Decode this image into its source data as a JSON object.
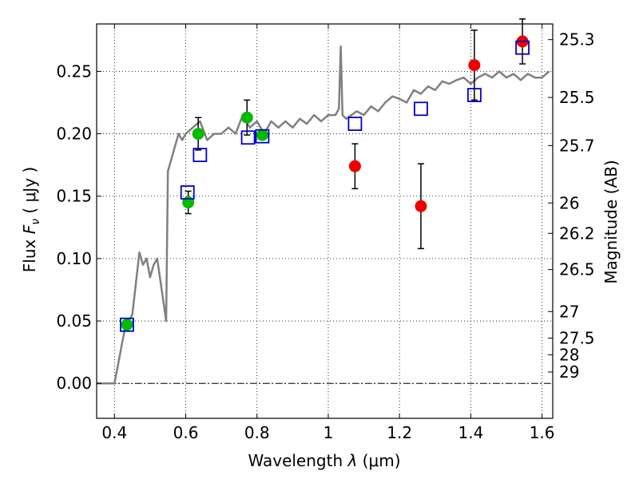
{
  "chart_data": {
    "type": "scatter",
    "xlabel_prefix": "Wavelength  ",
    "xlabel_symbol": "λ",
    "xlabel_unit": " (μm)",
    "ylabel_prefix": "Flux  ",
    "ylabel_symbol": "F",
    "ylabel_sub": "ν",
    "ylabel_unit": " ( μJy )",
    "y2label": "Magnitude (AB)",
    "xlim": [
      0.35,
      1.63
    ],
    "ylim": [
      -0.028,
      0.288
    ],
    "x_ticks": [
      0.4,
      0.6,
      0.8,
      1.0,
      1.2,
      1.4,
      1.6
    ],
    "x_tick_labels": [
      "0.4",
      "0.6",
      "0.8",
      "1",
      "1.2",
      "1.4",
      "1.6"
    ],
    "y_ticks": [
      0.0,
      0.05,
      0.1,
      0.15,
      0.2,
      0.25
    ],
    "y_tick_labels": [
      "0.00",
      "0.05",
      "0.10",
      "0.15",
      "0.20",
      "0.25"
    ],
    "y2_ticks": [
      {
        "mag": 25.3,
        "label": "25.3"
      },
      {
        "mag": 25.5,
        "label": "25.5"
      },
      {
        "mag": 25.7,
        "label": "25.7"
      },
      {
        "mag": 26,
        "label": "26"
      },
      {
        "mag": 26.2,
        "label": "26.2"
      },
      {
        "mag": 26.5,
        "label": "26.5"
      },
      {
        "mag": 27,
        "label": "27"
      },
      {
        "mag": 27.5,
        "label": "27.5"
      },
      {
        "mag": 28,
        "label": "28"
      },
      {
        "mag": 29,
        "label": "29"
      }
    ],
    "grid": true,
    "colors": {
      "model": "#808080",
      "model_points": "#0000cc",
      "green": "#00bb00",
      "red": "#ee0000",
      "errorbar": "#000000",
      "zero_line": "#000000"
    },
    "series": [
      {
        "kind": "line",
        "x": [
          0.35,
          0.4,
          0.41,
          0.42,
          0.43,
          0.44,
          0.45,
          0.46,
          0.47,
          0.48,
          0.49,
          0.5,
          0.51,
          0.52,
          0.53,
          0.54,
          0.545,
          0.55,
          0.56,
          0.57,
          0.58,
          0.59,
          0.6,
          0.62,
          0.64,
          0.66,
          0.68,
          0.7,
          0.72,
          0.74,
          0.76,
          0.78,
          0.8,
          0.82,
          0.84,
          0.86,
          0.88,
          0.9,
          0.92,
          0.94,
          0.96,
          0.98,
          1.0,
          1.02,
          1.03,
          1.035,
          1.04,
          1.05,
          1.08,
          1.1,
          1.12,
          1.14,
          1.16,
          1.18,
          1.2,
          1.22,
          1.24,
          1.26,
          1.28,
          1.3,
          1.32,
          1.34,
          1.36,
          1.38,
          1.4,
          1.42,
          1.44,
          1.46,
          1.48,
          1.5,
          1.52,
          1.54,
          1.56,
          1.58,
          1.6,
          1.62
        ],
        "y": [
          0.0,
          0.0,
          0.015,
          0.03,
          0.045,
          0.05,
          0.055,
          0.08,
          0.105,
          0.095,
          0.1,
          0.085,
          0.095,
          0.1,
          0.08,
          0.06,
          0.05,
          0.17,
          0.18,
          0.19,
          0.2,
          0.195,
          0.2,
          0.205,
          0.21,
          0.195,
          0.2,
          0.2,
          0.205,
          0.2,
          0.215,
          0.205,
          0.21,
          0.2,
          0.21,
          0.205,
          0.21,
          0.205,
          0.212,
          0.208,
          0.215,
          0.21,
          0.215,
          0.215,
          0.22,
          0.27,
          0.215,
          0.212,
          0.218,
          0.215,
          0.222,
          0.218,
          0.225,
          0.23,
          0.228,
          0.225,
          0.235,
          0.232,
          0.238,
          0.235,
          0.242,
          0.24,
          0.243,
          0.245,
          0.24,
          0.245,
          0.248,
          0.245,
          0.25,
          0.245,
          0.248,
          0.243,
          0.248,
          0.245,
          0.245,
          0.25
        ]
      },
      {
        "kind": "open-square",
        "x": [
          0.435,
          0.605,
          0.64,
          0.775,
          0.815,
          1.075,
          1.26,
          1.41,
          1.545
        ],
        "y": [
          0.047,
          0.153,
          0.183,
          0.197,
          0.198,
          0.208,
          0.22,
          0.231,
          0.269
        ]
      },
      {
        "kind": "filled-circle-green",
        "x": [
          0.435,
          0.607,
          0.635,
          0.772,
          0.815
        ],
        "y": [
          0.047,
          0.145,
          0.2,
          0.213,
          0.199
        ],
        "yerr": [
          0.0,
          0.009,
          0.013,
          0.014,
          0.0
        ]
      },
      {
        "kind": "filled-circle-red",
        "x": [
          1.075,
          1.26,
          1.41,
          1.545
        ],
        "y": [
          0.174,
          0.142,
          0.255,
          0.274
        ],
        "yerr": [
          0.018,
          0.034,
          0.028,
          0.018
        ]
      }
    ]
  }
}
